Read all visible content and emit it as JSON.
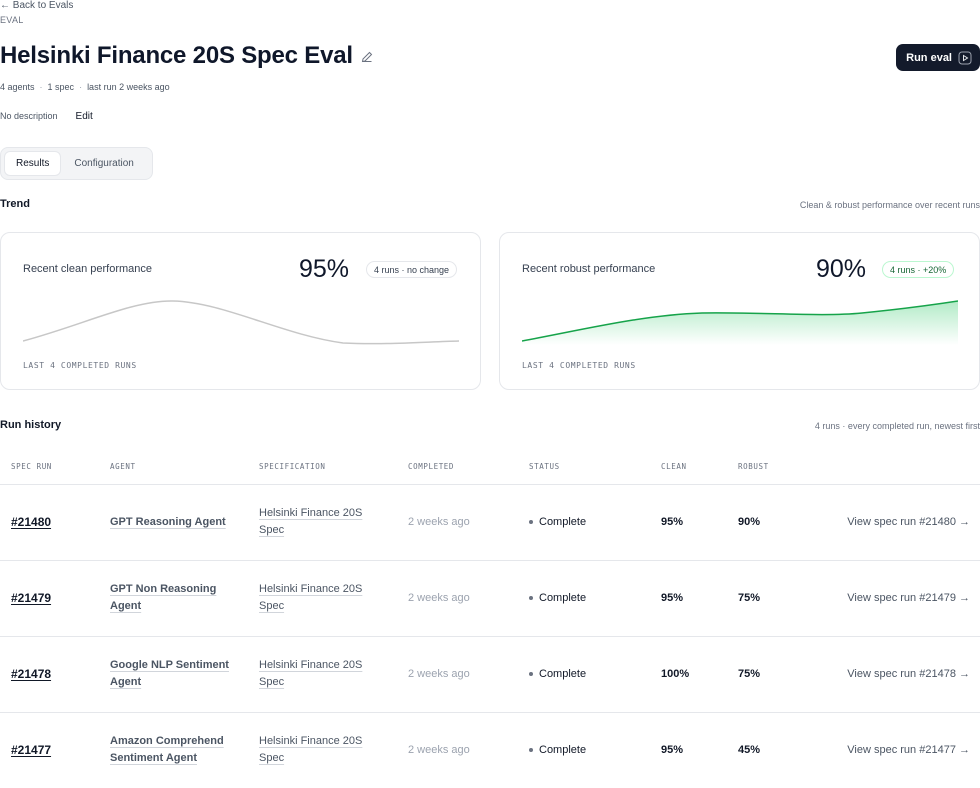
{
  "nav": {
    "back_label": "← Back to Evals"
  },
  "header": {
    "eyebrow": "EVAL",
    "title": "Helsinki Finance 20S Spec Eval",
    "run_button_label": "Run eval",
    "meta": {
      "agents": "4 agents",
      "specs": "1 spec",
      "last_run": "last run 2 weeks ago",
      "separator": "·"
    },
    "description": "No description",
    "edit_label": "Edit"
  },
  "tabs": [
    {
      "label": "Results",
      "active": true
    },
    {
      "label": "Configuration",
      "active": false
    }
  ],
  "trend": {
    "title": "Trend",
    "note": "Clean & robust performance over recent runs",
    "cards": [
      {
        "label": "Recent clean performance",
        "value": "95%",
        "badge": "4 runs · no change",
        "footer": "LAST 4 COMPLETED RUNS",
        "color": "#c7c7c7",
        "fill": false
      },
      {
        "label": "Recent robust performance",
        "value": "90%",
        "badge": "4 runs · +20%",
        "footer": "LAST 4 COMPLETED RUNS",
        "color": "#16a34a",
        "fill": true
      }
    ]
  },
  "history": {
    "title": "Run history",
    "note": "4 runs · every completed run, newest first",
    "columns": [
      "SPEC RUN",
      "AGENT",
      "SPECIFICATION",
      "COMPLETED",
      "STATUS",
      "CLEAN",
      "ROBUST"
    ],
    "rows": [
      {
        "id": "#21480",
        "agent_l1": "GPT Reasoning Agent",
        "agent_l2": "",
        "spec_l1": "Helsinki Finance 20S",
        "spec_l2": "Spec",
        "completed": "2 weeks ago",
        "status": "Complete",
        "clean": "95%",
        "robust": "90%",
        "link": "View spec run #21480 →"
      },
      {
        "id": "#21479",
        "agent_l1": "GPT Non Reasoning",
        "agent_l2": "Agent",
        "spec_l1": "Helsinki Finance 20S",
        "spec_l2": "Spec",
        "completed": "2 weeks ago",
        "status": "Complete",
        "clean": "95%",
        "robust": "75%",
        "link": "View spec run #21479 →"
      },
      {
        "id": "#21478",
        "agent_l1": "Google NLP Sentiment",
        "agent_l2": "Agent",
        "spec_l1": "Helsinki Finance 20S",
        "spec_l2": "Spec",
        "completed": "2 weeks ago",
        "status": "Complete",
        "clean": "100%",
        "robust": "75%",
        "link": "View spec run #21478 →"
      },
      {
        "id": "#21477",
        "agent_l1": "Amazon Comprehend",
        "agent_l2": "Sentiment Agent",
        "spec_l1": "Helsinki Finance 20S",
        "spec_l2": "Spec",
        "completed": "2 weeks ago",
        "status": "Complete",
        "clean": "95%",
        "robust": "45%",
        "link": "View spec run #21477 →"
      }
    ]
  }
}
